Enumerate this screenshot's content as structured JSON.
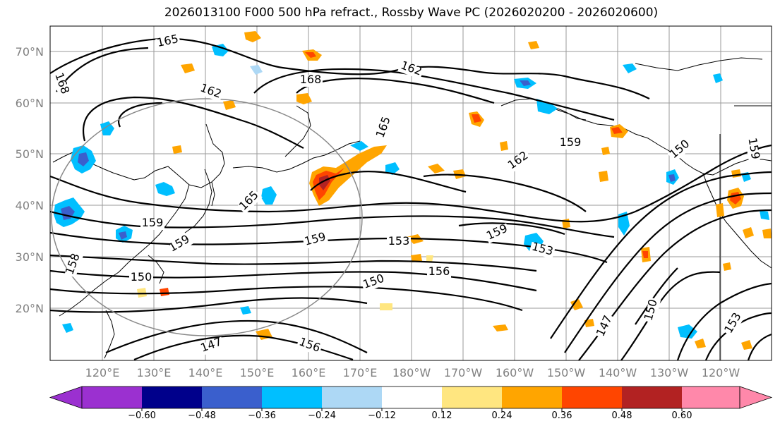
{
  "title": "2026013100 F000 500 hPa refract., Rossby Wave PC (2026020200 - 2026020600)",
  "lat_labels": [
    "70°N",
    "60°N",
    "50°N",
    "40°N",
    "30°N",
    "20°N"
  ],
  "lon_labels": [
    "120°E",
    "130°E",
    "140°E",
    "150°E",
    "160°E",
    "170°E",
    "180°W",
    "170°W",
    "160°W",
    "150°W",
    "140°W",
    "130°W",
    "120°W"
  ],
  "contour_labels": [
    "165",
    "168",
    "162",
    "168",
    "162",
    "165",
    "159",
    "162",
    "150",
    "159",
    "159",
    "159",
    "165",
    "153",
    "159",
    "153",
    "150",
    "159",
    "156",
    "150",
    "147",
    "150",
    "153",
    "147",
    "156",
    "158"
  ],
  "colorbar": {
    "tick_labels": [
      "−0.60",
      "−0.48",
      "−0.36",
      "−0.24",
      "−0.12",
      "0.12",
      "0.24",
      "0.36",
      "0.48",
      "0.60"
    ],
    "colors": [
      "#9b30d0",
      "#00008b",
      "#3a5fcd",
      "#00bfff",
      "#add8f5",
      "#ffffff",
      "#ffe680",
      "#ffa500",
      "#ff4500",
      "#b22222",
      "#ff88aa"
    ]
  }
}
